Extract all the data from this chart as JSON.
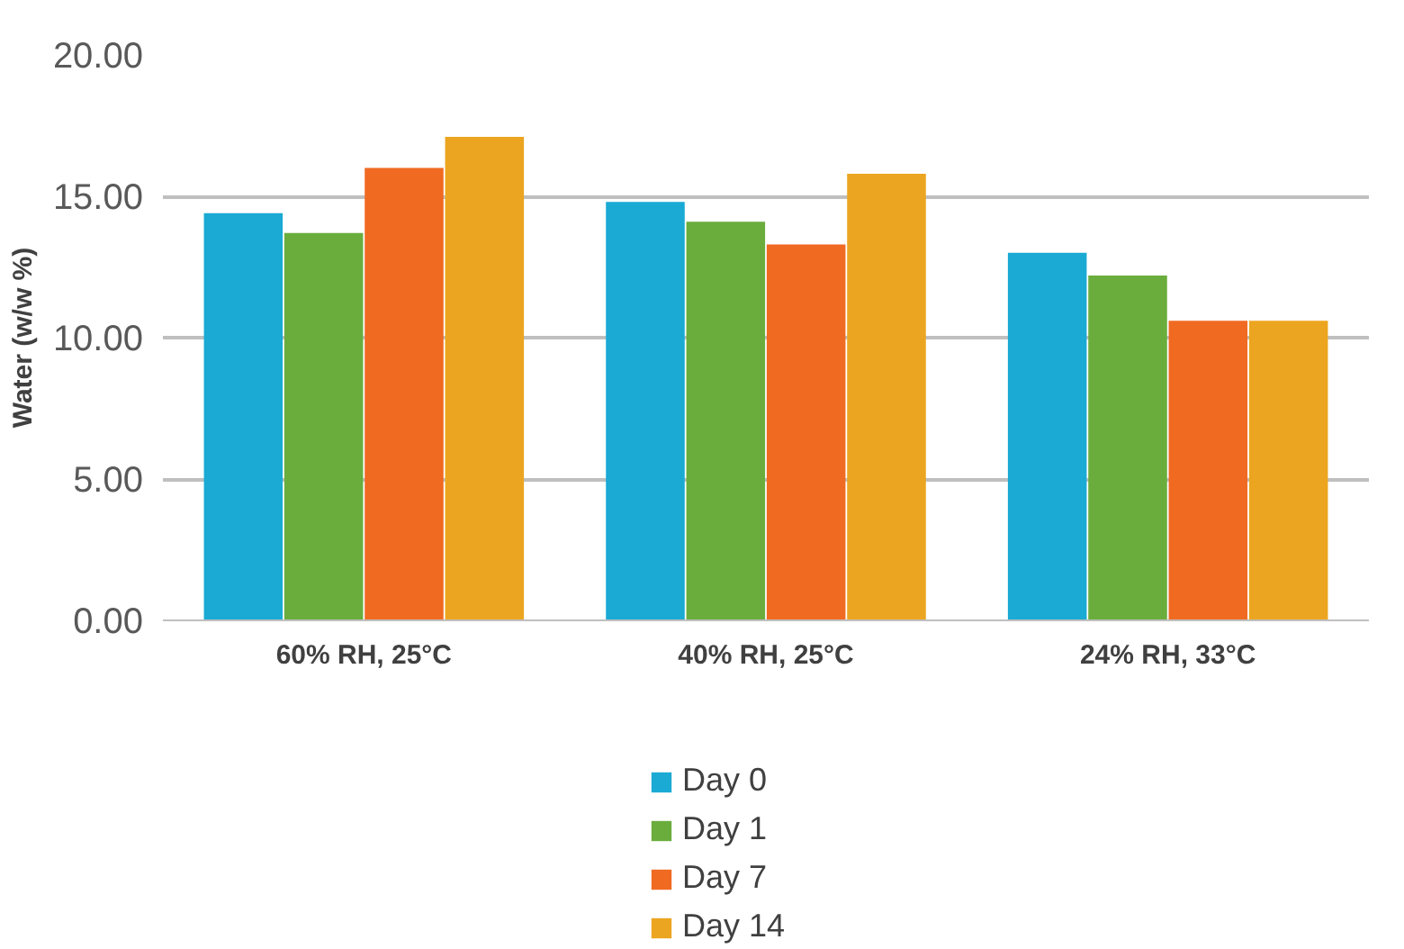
{
  "chart_data": {
    "type": "bar",
    "ylabel": "Water (w/w %)",
    "categories": [
      "60% RH, 25°C",
      "40% RH, 25°C",
      "24% RH, 33°C"
    ],
    "series": [
      {
        "name": "Day 0",
        "color": "#1aaad4",
        "values": [
          14.4,
          14.8,
          13.0
        ]
      },
      {
        "name": "Day 1",
        "color": "#6aad3d",
        "values": [
          13.7,
          14.1,
          12.2
        ]
      },
      {
        "name": "Day 7",
        "color": "#f06a22",
        "values": [
          16.0,
          13.3,
          10.6
        ]
      },
      {
        "name": "Day 14",
        "color": "#eca520",
        "values": [
          17.1,
          15.8,
          10.6
        ]
      }
    ],
    "ylim": [
      0,
      20
    ],
    "yticks": [
      {
        "value": 0,
        "label": "0.00"
      },
      {
        "value": 5,
        "label": "5.00"
      },
      {
        "value": 10,
        "label": "10.00"
      },
      {
        "value": 15,
        "label": "15.00"
      },
      {
        "value": 20,
        "label": "20.00"
      }
    ],
    "grid": "y",
    "legend": "bottom"
  }
}
